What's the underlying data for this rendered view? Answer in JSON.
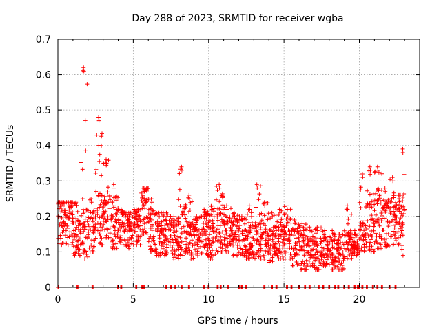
{
  "chart_data": {
    "type": "scatter",
    "title": "Day 288 of 2023, SRMTID for receiver wgba",
    "xlabel": "GPS time / hours",
    "ylabel": "SRMTID / TECUs",
    "xlim": [
      0,
      24
    ],
    "ylim": [
      0,
      0.7
    ],
    "xticks": [
      0,
      5,
      10,
      15,
      20
    ],
    "yticks": [
      0,
      0.1,
      0.2,
      0.3,
      0.4,
      0.5,
      0.6,
      0.7
    ],
    "xtick_labels": [
      "0",
      "5",
      "10",
      "15",
      "20"
    ],
    "ytick_labels": [
      "0",
      "0.1",
      "0.2",
      "0.3",
      "0.4",
      "0.5",
      "0.6",
      "0.7"
    ],
    "grid": true,
    "marker": "plus",
    "color": "#ff0000",
    "series": [
      {
        "name": "SRMTID",
        "description": "approximate envelope of the dense point cloud, binned every 0.5 h (median with typical low/high)",
        "x": [
          0.0,
          0.5,
          1.0,
          1.5,
          2.0,
          2.5,
          3.0,
          3.5,
          4.0,
          4.5,
          5.0,
          5.5,
          6.0,
          6.5,
          7.0,
          7.5,
          8.0,
          8.5,
          9.0,
          9.5,
          10.0,
          10.5,
          11.0,
          11.5,
          12.0,
          12.5,
          13.0,
          13.5,
          14.0,
          14.5,
          15.0,
          15.5,
          16.0,
          16.5,
          17.0,
          17.5,
          18.0,
          18.5,
          19.0,
          19.5,
          20.0,
          20.5,
          21.0,
          21.5,
          22.0,
          22.5,
          22.8
        ],
        "median": [
          0.19,
          0.18,
          0.14,
          0.15,
          0.16,
          0.19,
          0.2,
          0.18,
          0.17,
          0.16,
          0.17,
          0.22,
          0.16,
          0.15,
          0.14,
          0.13,
          0.16,
          0.13,
          0.14,
          0.15,
          0.15,
          0.18,
          0.16,
          0.15,
          0.14,
          0.13,
          0.14,
          0.13,
          0.12,
          0.13,
          0.14,
          0.11,
          0.11,
          0.1,
          0.09,
          0.1,
          0.1,
          0.09,
          0.12,
          0.11,
          0.14,
          0.17,
          0.19,
          0.18,
          0.19,
          0.2,
          0.18
        ],
        "low": [
          0.12,
          0.12,
          0.09,
          0.08,
          0.1,
          0.12,
          0.14,
          0.11,
          0.12,
          0.11,
          0.12,
          0.15,
          0.1,
          0.09,
          0.09,
          0.08,
          0.09,
          0.08,
          0.08,
          0.09,
          0.08,
          0.1,
          0.1,
          0.09,
          0.09,
          0.08,
          0.08,
          0.08,
          0.07,
          0.08,
          0.08,
          0.06,
          0.05,
          0.06,
          0.05,
          0.06,
          0.05,
          0.05,
          0.08,
          0.09,
          0.1,
          0.1,
          0.11,
          0.11,
          0.12,
          0.12,
          0.09
        ],
        "high": [
          0.24,
          0.24,
          0.24,
          0.62,
          0.25,
          0.48,
          0.36,
          0.29,
          0.22,
          0.21,
          0.22,
          0.28,
          0.25,
          0.21,
          0.21,
          0.2,
          0.34,
          0.26,
          0.2,
          0.22,
          0.23,
          0.29,
          0.23,
          0.21,
          0.2,
          0.23,
          0.29,
          0.24,
          0.21,
          0.22,
          0.23,
          0.19,
          0.18,
          0.17,
          0.17,
          0.16,
          0.16,
          0.15,
          0.23,
          0.16,
          0.32,
          0.34,
          0.34,
          0.28,
          0.31,
          0.26,
          0.39
        ]
      },
      {
        "name": "zero values",
        "description": "clusters of points lying on y = 0",
        "x": [
          0.0,
          1.3,
          2.3,
          4.0,
          4.2,
          5.2,
          5.6,
          5.7,
          7.2,
          7.5,
          7.8,
          8.2,
          8.7,
          9.7,
          10.0,
          10.6,
          10.8,
          11.3,
          12.0,
          12.2,
          12.5,
          13.7,
          14.2,
          14.5,
          15.2,
          15.5,
          16.0,
          16.4,
          16.7,
          17.3,
          17.6,
          18.0,
          18.4,
          18.6,
          19.0,
          19.3,
          19.7,
          19.9,
          20.0,
          20.2,
          20.5,
          20.9,
          21.2,
          21.5,
          22.0,
          22.4
        ]
      }
    ]
  }
}
